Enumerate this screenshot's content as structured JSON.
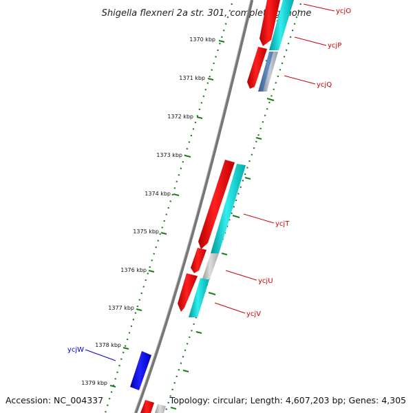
{
  "title": "Shigella flexneri 2a str. 301, complete genome",
  "footer": {
    "accession": "Accession: NC_004337",
    "topology": "Topology: circular; Length: 4,607,203 bp; Genes: 4,305"
  },
  "ticks": [
    "1370 kbp",
    "1371 kbp",
    "1372 kbp",
    "1373 kbp",
    "1374 kbp",
    "1375 kbp",
    "1376 kbp",
    "1377 kbp",
    "1378 kbp",
    "1379 kbp"
  ],
  "genes": [
    {
      "name": "ycjO",
      "color": "#cc0000"
    },
    {
      "name": "ycjP",
      "color": "#cc0000"
    },
    {
      "name": "ycjQ",
      "color": "#cc0000"
    },
    {
      "name": "ycjT",
      "color": "#cc0000"
    },
    {
      "name": "ycjU",
      "color": "#cc0000"
    },
    {
      "name": "ycjV",
      "color": "#cc0000"
    },
    {
      "name": "ycjW",
      "color": "#0000cc"
    }
  ],
  "colors": {
    "cds": "#ff0000",
    "orf": "#00cccc",
    "other": "#bbbbbb",
    "reverse_gene": "#0000ee",
    "tick": "#1a7a1a",
    "backbone": "#808080"
  }
}
